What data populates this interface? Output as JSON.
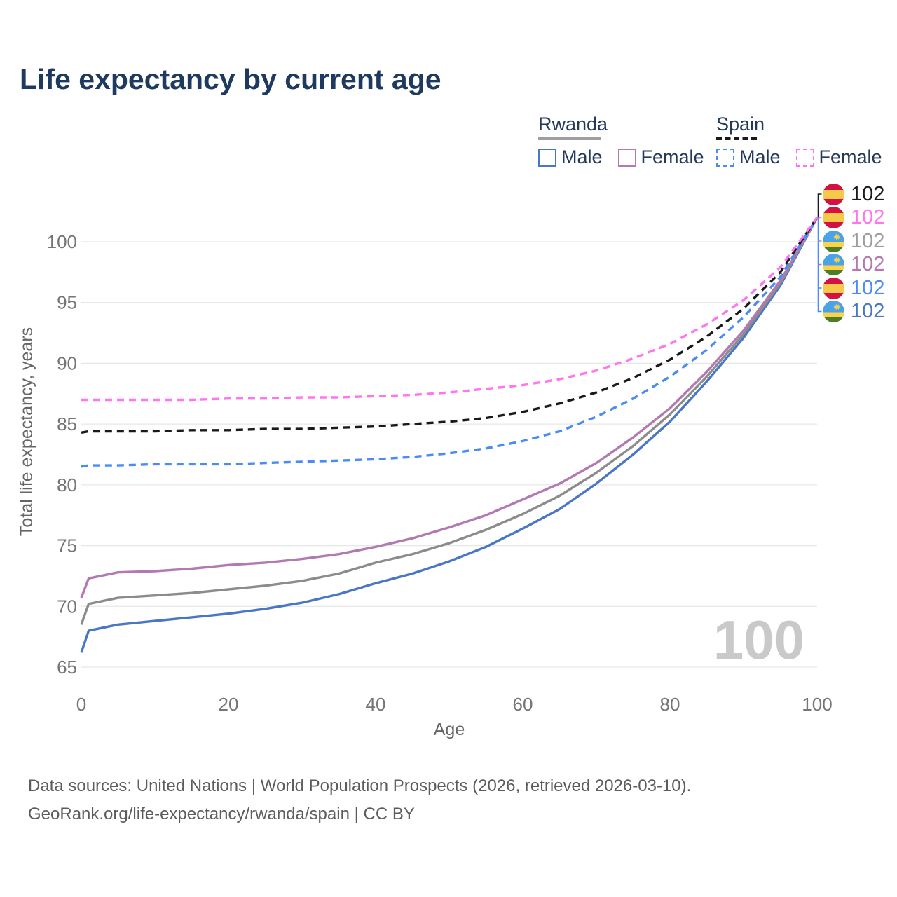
{
  "title": "Life expectancy by current age",
  "legend": {
    "groups": [
      {
        "label": "Rwanda",
        "line_style": "solid",
        "underline_color": "#9e9e9e",
        "items": [
          {
            "label": "Male",
            "color": "#4a77c4"
          },
          {
            "label": "Female",
            "color": "#b279b2"
          }
        ]
      },
      {
        "label": "Spain",
        "line_style": "dashed",
        "underline_color": "#1a1a1a",
        "items": [
          {
            "label": "Male",
            "color": "#4b8bf5"
          },
          {
            "label": "Female",
            "color": "#ff74ef"
          }
        ]
      }
    ]
  },
  "chart_data": {
    "type": "line",
    "title": "Life expectancy by current age",
    "xlabel": "Age",
    "ylabel": "Total life expectancy, years",
    "xlim": [
      0,
      100
    ],
    "ylim": [
      63.5,
      103
    ],
    "xticks": [
      0,
      20,
      40,
      60,
      80,
      100
    ],
    "yticks": [
      65,
      70,
      75,
      80,
      85,
      90,
      95,
      100
    ],
    "grid": "horizontal",
    "legend_position": "top-right",
    "x": [
      0,
      1,
      5,
      10,
      15,
      20,
      25,
      30,
      35,
      40,
      45,
      50,
      55,
      60,
      65,
      70,
      75,
      80,
      85,
      90,
      95,
      100
    ],
    "series": [
      {
        "name": "Rwanda Male",
        "country": "Rwanda",
        "sex": "Male",
        "color": "#4a77c4",
        "dash": false,
        "values": [
          66.2,
          68.0,
          68.5,
          68.8,
          69.1,
          69.4,
          69.8,
          70.3,
          71.0,
          71.9,
          72.7,
          73.7,
          74.9,
          76.4,
          78.0,
          80.1,
          82.5,
          85.2,
          88.5,
          92.1,
          96.4,
          102
        ]
      },
      {
        "name": "Rwanda Both sexes",
        "country": "Rwanda",
        "sex": "Both",
        "color": "#8c8c8c",
        "dash": false,
        "values": [
          68.5,
          70.2,
          70.7,
          70.9,
          71.1,
          71.4,
          71.7,
          72.1,
          72.7,
          73.6,
          74.3,
          75.2,
          76.3,
          77.6,
          79.1,
          81.0,
          83.2,
          85.8,
          88.9,
          92.4,
          96.6,
          102
        ]
      },
      {
        "name": "Rwanda Female",
        "country": "Rwanda",
        "sex": "Female",
        "color": "#b279b2",
        "dash": false,
        "values": [
          70.7,
          72.3,
          72.8,
          72.9,
          73.1,
          73.4,
          73.6,
          73.9,
          74.3,
          74.9,
          75.6,
          76.5,
          77.5,
          78.8,
          80.1,
          81.8,
          83.9,
          86.3,
          89.3,
          92.7,
          96.8,
          102
        ]
      },
      {
        "name": "Spain Male",
        "country": "Spain",
        "sex": "Male",
        "color": "#4b8bf5",
        "dash": true,
        "values": [
          81.5,
          81.6,
          81.6,
          81.7,
          81.7,
          81.7,
          81.8,
          81.9,
          82.0,
          82.1,
          82.3,
          82.6,
          83.0,
          83.6,
          84.4,
          85.6,
          87.1,
          88.9,
          91.1,
          93.8,
          97.1,
          102
        ]
      },
      {
        "name": "Spain Both sexes",
        "country": "Spain",
        "sex": "Both",
        "color": "#1a1a1a",
        "dash": true,
        "values": [
          84.3,
          84.4,
          84.4,
          84.4,
          84.5,
          84.5,
          84.6,
          84.6,
          84.7,
          84.8,
          85.0,
          85.2,
          85.5,
          86.0,
          86.7,
          87.6,
          88.8,
          90.3,
          92.2,
          94.5,
          97.5,
          102
        ]
      },
      {
        "name": "Spain Female",
        "country": "Spain",
        "sex": "Female",
        "color": "#ff74ef",
        "dash": true,
        "values": [
          87.0,
          87.0,
          87.0,
          87.0,
          87.0,
          87.1,
          87.1,
          87.2,
          87.2,
          87.3,
          87.4,
          87.6,
          87.9,
          88.2,
          88.7,
          89.4,
          90.4,
          91.6,
          93.2,
          95.2,
          97.9,
          102
        ]
      }
    ]
  },
  "end_labels": [
    {
      "series": "Spain Both sexes",
      "flag": "spain",
      "value": "102",
      "color": "#1a1a1a"
    },
    {
      "series": "Spain Female",
      "flag": "spain",
      "value": "102",
      "color": "#ff74ef"
    },
    {
      "series": "Rwanda Both sexes",
      "flag": "rwanda",
      "value": "102",
      "color": "#9e9e9e"
    },
    {
      "series": "Rwanda Female",
      "flag": "rwanda",
      "value": "102",
      "color": "#b279b2"
    },
    {
      "series": "Spain Male",
      "flag": "spain",
      "value": "102",
      "color": "#4b8bf5"
    },
    {
      "series": "Rwanda Male",
      "flag": "rwanda",
      "value": "102",
      "color": "#4a77c4"
    }
  ],
  "watermark": "100",
  "footer": {
    "line1": "Data sources: United Nations | World Population Prospects (2026, retrieved 2026-03-10).",
    "line2": "GeoRank.org/life-expectancy/rwanda/spain | CC BY"
  }
}
